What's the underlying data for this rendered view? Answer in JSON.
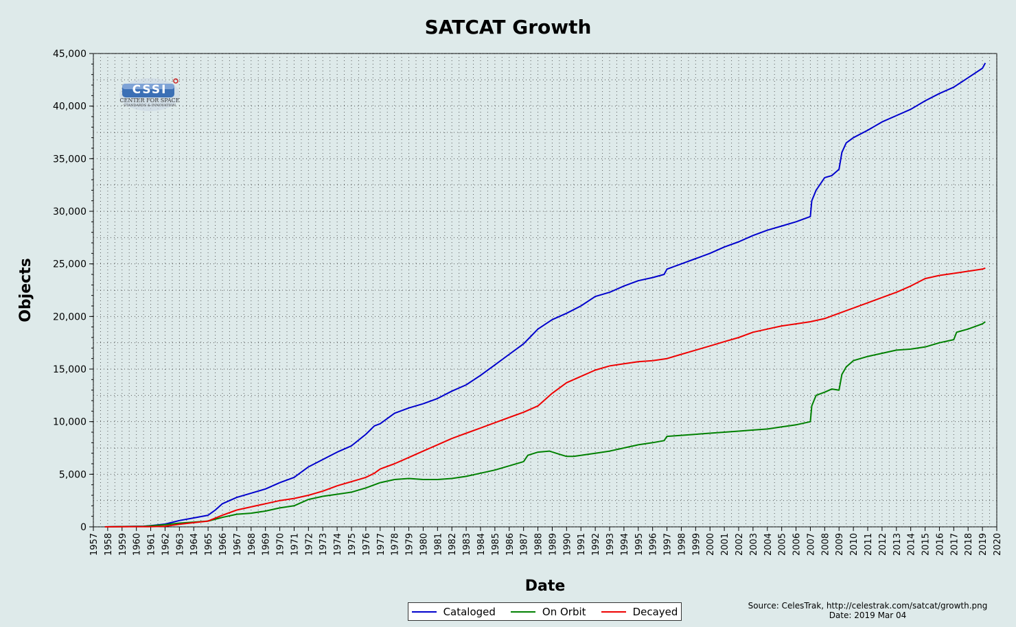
{
  "colors": {
    "background": "#deeaea",
    "plot_background": "#deeaea",
    "grid": "#333333",
    "cataloged": "#0000cc",
    "on_orbit": "#008000",
    "decayed": "#ee0000"
  },
  "logo": {
    "text_main": "CSSI",
    "text_line1": "CENTER FOR SPACE",
    "text_line2": "STANDARDS & INNOVATION"
  },
  "source": {
    "line1": "Source: CelesTrak, http://celestrak.com/satcat/growth.png",
    "line2": "Date: 2019 Mar 04"
  },
  "chart_data": {
    "type": "line",
    "title": "SATCAT Growth",
    "xlabel": "Date",
    "ylabel": "Objects",
    "xlim": [
      1957,
      2020
    ],
    "ylim": [
      0,
      45000
    ],
    "x_ticks": [
      "1957",
      "1958",
      "1959",
      "1960",
      "1961",
      "1962",
      "1963",
      "1964",
      "1965",
      "1966",
      "1967",
      "1968",
      "1969",
      "1970",
      "1971",
      "1972",
      "1973",
      "1974",
      "1975",
      "1976",
      "1977",
      "1978",
      "1979",
      "1980",
      "1981",
      "1982",
      "1983",
      "1984",
      "1985",
      "1986",
      "1987",
      "1988",
      "1989",
      "1990",
      "1991",
      "1992",
      "1993",
      "1994",
      "1995",
      "1996",
      "1997",
      "1998",
      "1999",
      "2000",
      "2001",
      "2002",
      "2003",
      "2004",
      "2005",
      "2006",
      "2007",
      "2008",
      "2009",
      "2010",
      "2011",
      "2012",
      "2013",
      "2014",
      "2015",
      "2016",
      "2017",
      "2018",
      "2019",
      "2020"
    ],
    "y_ticks": [
      "0",
      "5,000",
      "10,000",
      "15,000",
      "20,000",
      "25,000",
      "30,000",
      "35,000",
      "40,000",
      "45,000"
    ],
    "grid": true,
    "legend_position": "bottom-center",
    "series": [
      {
        "name": "Cataloged",
        "color": "#0000cc",
        "x": [
          1957.8,
          1958.5,
          1959.5,
          1960.5,
          1961.0,
          1962.0,
          1963.0,
          1964.0,
          1965.0,
          1965.5,
          1966.0,
          1967.0,
          1968.0,
          1969.0,
          1970.0,
          1971.0,
          1972.0,
          1973.0,
          1974.0,
          1975.0,
          1976.0,
          1976.6,
          1977.0,
          1978.0,
          1979.0,
          1980.0,
          1981.0,
          1982.0,
          1983.0,
          1984.0,
          1985.0,
          1986.0,
          1987.0,
          1987.5,
          1988.0,
          1989.0,
          1990.0,
          1991.0,
          1992.0,
          1993.0,
          1994.0,
          1995.0,
          1996.0,
          1996.8,
          1997.0,
          1998.0,
          1999.0,
          2000.0,
          2001.0,
          2002.0,
          2003.0,
          2004.0,
          2005.0,
          2006.0,
          2007.0,
          2007.1,
          2007.4,
          2008.0,
          2008.5,
          2009.0,
          2009.2,
          2009.5,
          2010.0,
          2011.0,
          2012.0,
          2013.0,
          2014.0,
          2015.0,
          2016.0,
          2017.0,
          2018.0,
          2019.0,
          2019.2
        ],
        "values": [
          3,
          20,
          40,
          60,
          120,
          260,
          600,
          850,
          1100,
          1600,
          2200,
          2800,
          3200,
          3600,
          4200,
          4700,
          5700,
          6400,
          7100,
          7700,
          8800,
          9600,
          9800,
          10800,
          11300,
          11700,
          12200,
          12900,
          13500,
          14400,
          15400,
          16400,
          17400,
          18100,
          18800,
          19700,
          20300,
          21000,
          21900,
          22300,
          22900,
          23400,
          23700,
          24000,
          24500,
          25000,
          25500,
          26000,
          26600,
          27100,
          27700,
          28200,
          28600,
          29000,
          29500,
          31000,
          32000,
          33200,
          33400,
          34000,
          35600,
          36500,
          37000,
          37700,
          38500,
          39100,
          39700,
          40500,
          41200,
          41800,
          42700,
          43600,
          44100
        ]
      },
      {
        "name": "On Orbit",
        "color": "#008000",
        "x": [
          1957.8,
          1958.5,
          1959.5,
          1960.5,
          1961.0,
          1962.0,
          1963.0,
          1964.0,
          1965.0,
          1966.0,
          1967.0,
          1968.0,
          1969.0,
          1970.0,
          1971.0,
          1972.0,
          1973.0,
          1974.0,
          1975.0,
          1976.0,
          1977.0,
          1978.0,
          1979.0,
          1980.0,
          1981.0,
          1982.0,
          1983.0,
          1984.0,
          1985.0,
          1986.0,
          1987.0,
          1987.3,
          1988.0,
          1988.8,
          1989.5,
          1990.0,
          1990.5,
          1991.0,
          1992.0,
          1993.0,
          1994.0,
          1995.0,
          1996.0,
          1996.8,
          1997.0,
          1998.0,
          1999.0,
          2000.0,
          2001.0,
          2002.0,
          2003.0,
          2004.0,
          2005.0,
          2006.0,
          2007.0,
          2007.1,
          2007.4,
          2008.0,
          2008.5,
          2009.0,
          2009.2,
          2009.5,
          2010.0,
          2011.0,
          2012.0,
          2013.0,
          2014.0,
          2015.0,
          2016.0,
          2017.0,
          2017.2,
          2018.0,
          2019.0,
          2019.2
        ],
        "values": [
          3,
          15,
          30,
          50,
          100,
          200,
          350,
          450,
          550,
          900,
          1200,
          1300,
          1500,
          1800,
          2000,
          2600,
          2900,
          3100,
          3300,
          3700,
          4200,
          4500,
          4600,
          4500,
          4500,
          4600,
          4800,
          5100,
          5400,
          5800,
          6200,
          6800,
          7100,
          7200,
          6900,
          6700,
          6700,
          6800,
          7000,
          7200,
          7500,
          7800,
          8000,
          8200,
          8600,
          8700,
          8800,
          8900,
          9000,
          9100,
          9200,
          9300,
          9500,
          9700,
          10000,
          11500,
          12500,
          12800,
          13100,
          13000,
          14500,
          15200,
          15800,
          16200,
          16500,
          16800,
          16900,
          17100,
          17500,
          17800,
          18500,
          18800,
          19300,
          19500
        ]
      },
      {
        "name": "Decayed",
        "color": "#ee0000",
        "x": [
          1957.8,
          1958.5,
          1959.5,
          1960.5,
          1961.0,
          1962.0,
          1963.0,
          1964.0,
          1965.0,
          1966.0,
          1967.0,
          1968.0,
          1969.0,
          1970.0,
          1971.0,
          1972.0,
          1973.0,
          1974.0,
          1975.0,
          1976.0,
          1976.6,
          1977.0,
          1978.0,
          1979.0,
          1980.0,
          1981.0,
          1982.0,
          1983.0,
          1984.0,
          1985.0,
          1986.0,
          1987.0,
          1988.0,
          1989.0,
          1990.0,
          1991.0,
          1992.0,
          1993.0,
          1994.0,
          1995.0,
          1996.0,
          1997.0,
          1998.0,
          1999.0,
          2000.0,
          2001.0,
          2002.0,
          2003.0,
          2004.0,
          2005.0,
          2006.0,
          2007.0,
          2008.0,
          2009.0,
          2010.0,
          2011.0,
          2012.0,
          2013.0,
          2014.0,
          2015.0,
          2016.0,
          2017.0,
          2018.0,
          2019.0,
          2019.2
        ],
        "values": [
          0,
          5,
          10,
          10,
          20,
          60,
          250,
          400,
          550,
          1100,
          1600,
          1900,
          2200,
          2500,
          2700,
          3000,
          3400,
          3900,
          4300,
          4700,
          5100,
          5500,
          6000,
          6600,
          7200,
          7800,
          8400,
          8900,
          9400,
          9900,
          10400,
          10900,
          11500,
          12700,
          13700,
          14300,
          14900,
          15300,
          15500,
          15700,
          15800,
          16000,
          16400,
          16800,
          17200,
          17600,
          18000,
          18500,
          18800,
          19100,
          19300,
          19500,
          19800,
          20300,
          20800,
          21300,
          21800,
          22300,
          22900,
          23600,
          23900,
          24100,
          24300,
          24500,
          24600
        ]
      }
    ]
  }
}
